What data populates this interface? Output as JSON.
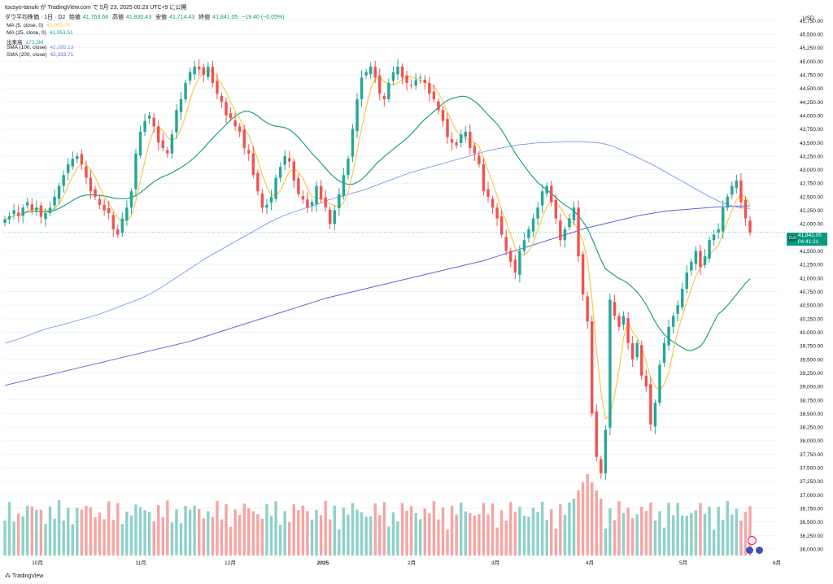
{
  "header": {
    "author_line": "tousyo-tanuki が TradingView.com で 5月 23, 2025 00:23 UTC+9 に公開",
    "title": "ダウ平均株価 · 1日 · DJ",
    "ohlc": [
      {
        "label": "始値",
        "value": "41,763.68"
      },
      {
        "label": "高値",
        "value": "41,930.43"
      },
      {
        "label": "安値",
        "value": "41,714.43"
      },
      {
        "label": "終値",
        "value": "41,841.05"
      },
      {
        "label": "",
        "value": "−19.40 (−0.05%)"
      }
    ]
  },
  "legend": [
    {
      "label": "MA (5, close, 0)",
      "value": "42,099.70",
      "color": "#f7c948"
    },
    {
      "label": "MA (25, close, 0)",
      "value": "41,053.51",
      "color": "#1aa389"
    },
    {
      "label": "出来高",
      "value": "173.3M",
      "color": "#26a69a"
    },
    {
      "label": "SMA (100, close)",
      "value": "42,285.13",
      "color": "#6b8cf5"
    },
    {
      "label": "SMA (200, close)",
      "value": "42,333.71",
      "color": "#6a5fdc"
    }
  ],
  "price_tag": {
    "symbol": "DJI",
    "price": "41,841.05",
    "countdown": "04:41:21"
  },
  "footer": {
    "brand": "TradingView"
  },
  "colors": {
    "up": "#26a69a",
    "down": "#ef5350",
    "vol_up": "#8fd1c9",
    "vol_down": "#f4a6a4",
    "grid": "#f0f3fa"
  },
  "chart_data": {
    "type": "candlestick",
    "currency": "USD",
    "y_ticks": [
      "45,750.00",
      "45,500.00",
      "45,250.00",
      "45,000.00",
      "44,750.00",
      "44,500.00",
      "44,250.00",
      "44,000.00",
      "43,750.00",
      "43,500.00",
      "43,250.00",
      "43,000.00",
      "42,750.00",
      "42,500.00",
      "42,250.00",
      "42,000.00",
      "41,750.00",
      "41,500.00",
      "41,250.00",
      "41,000.00",
      "40,750.00",
      "40,500.00",
      "40,250.00",
      "40,000.00",
      "39,750.00",
      "39,500.00",
      "39,250.00",
      "39,000.00",
      "38,750.00",
      "38,500.00",
      "38,250.00",
      "38,000.00",
      "37,750.00",
      "37,500.00",
      "37,250.00",
      "37,000.00",
      "36,750.00",
      "36,500.00",
      "36,250.00",
      "36,000.00"
    ],
    "x_ticks": [
      "10月",
      "11月",
      "12月",
      "2025",
      "2月",
      "3月",
      "4月",
      "5月",
      "6月"
    ],
    "ylim": [
      35900,
      45900
    ],
    "close": [
      42080,
      42140,
      42250,
      42150,
      42300,
      42400,
      42250,
      42300,
      42130,
      42200,
      42300,
      42500,
      42700,
      42900,
      43100,
      43200,
      43250,
      43100,
      42850,
      42600,
      42500,
      42350,
      42250,
      42200,
      41900,
      41800,
      42100,
      42300,
      42600,
      43300,
      43700,
      43900,
      44000,
      43800,
      43500,
      43400,
      43300,
      43650,
      44100,
      44300,
      44600,
      44800,
      44900,
      44850,
      44750,
      44900,
      44600,
      44400,
      44250,
      44000,
      43950,
      43800,
      43700,
      43400,
      43300,
      42900,
      42600,
      42300,
      42350,
      42500,
      42850,
      43050,
      43250,
      43150,
      42800,
      42550,
      42450,
      42300,
      42400,
      42700,
      42450,
      42300,
      42000,
      42250,
      42550,
      42900,
      43200,
      43750,
      44300,
      44700,
      44800,
      44900,
      44700,
      44400,
      44300,
      44600,
      44800,
      44900,
      44700,
      44600,
      44550,
      44650,
      44700,
      44600,
      44400,
      44300,
      44100,
      43900,
      43600,
      43500,
      43450,
      43650,
      43700,
      43400,
      43300,
      43100,
      42600,
      42500,
      42300,
      42100,
      41800,
      41500,
      41300,
      41100,
      41500,
      41700,
      41900,
      42100,
      42300,
      42600,
      42700,
      42400,
      42100,
      41700,
      41900,
      42100,
      42300,
      41400,
      40700,
      40200,
      38500,
      37700,
      37400,
      38200,
      40600,
      40300,
      40100,
      40300,
      39800,
      39500,
      39800,
      39200,
      39000,
      38300,
      38700,
      39400,
      39800,
      40100,
      40300,
      40500,
      40800,
      41100,
      41300,
      41500,
      41200,
      41400,
      41700,
      41800,
      41900,
      42300,
      42500,
      42700,
      42800,
      42400,
      42100,
      41841
    ],
    "sma100": [
      39800,
      39830,
      39860,
      39900,
      39940,
      39980,
      40020,
      40060,
      40090,
      40110,
      40140,
      40170,
      40200,
      40230,
      40260,
      40290,
      40320,
      40360,
      40400,
      40440,
      40480,
      40520,
      40560,
      40600,
      40650,
      40700,
      40760,
      40820,
      40890,
      40960,
      41030,
      41100,
      41170,
      41240,
      41310,
      41380,
      41440,
      41500,
      41560,
      41620,
      41680,
      41740,
      41800,
      41860,
      41920,
      41980,
      42040,
      42090,
      42140,
      42180,
      42220,
      42250,
      42290,
      42320,
      42360,
      42400,
      42440,
      42470,
      42500,
      42530,
      42560,
      42590,
      42620,
      42660,
      42700,
      42740,
      42780,
      42820,
      42860,
      42900,
      42940,
      42970,
      43000,
      43030,
      43060,
      43090,
      43120,
      43150,
      43180,
      43210,
      43240,
      43270,
      43300,
      43330,
      43360,
      43380,
      43400,
      43420,
      43440,
      43460,
      43470,
      43480,
      43490,
      43500,
      43500,
      43510,
      43510,
      43520,
      43520,
      43520,
      43520,
      43510,
      43500,
      43490,
      43470,
      43440,
      43400,
      43350,
      43300,
      43250,
      43200,
      43150,
      43100,
      43040,
      42980,
      42920,
      42860,
      42800,
      42740,
      42680,
      42620,
      42560,
      42500,
      42450,
      42400,
      42360,
      42330,
      42300,
      42290,
      42285
    ],
    "sma200": [
      39020,
      39050,
      39080,
      39110,
      39140,
      39170,
      39200,
      39230,
      39260,
      39290,
      39320,
      39350,
      39380,
      39410,
      39440,
      39470,
      39500,
      39530,
      39560,
      39590,
      39620,
      39650,
      39680,
      39710,
      39740,
      39770,
      39800,
      39830,
      39870,
      39910,
      39950,
      39990,
      40030,
      40070,
      40110,
      40150,
      40190,
      40230,
      40270,
      40310,
      40350,
      40390,
      40430,
      40470,
      40510,
      40550,
      40590,
      40630,
      40660,
      40690,
      40720,
      40750,
      40780,
      40810,
      40840,
      40870,
      40900,
      40930,
      40960,
      40990,
      41020,
      41050,
      41080,
      41110,
      41140,
      41170,
      41200,
      41230,
      41260,
      41290,
      41320,
      41360,
      41400,
      41440,
      41480,
      41520,
      41560,
      41600,
      41640,
      41680,
      41720,
      41760,
      41800,
      41840,
      41880,
      41920,
      41950,
      41980,
      42010,
      42040,
      42070,
      42100,
      42130,
      42160,
      42180,
      42200,
      42220,
      42240,
      42250,
      42260,
      42270,
      42280,
      42290,
      42300,
      42310,
      42315,
      42320,
      42325,
      42330,
      42333
    ]
  }
}
